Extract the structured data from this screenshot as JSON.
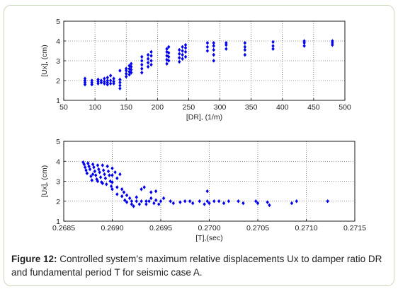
{
  "colors": {
    "marker": "#0000ee",
    "frame": "#c9d9b8",
    "caption_text": "#222222"
  },
  "caption": {
    "label": "Figure 12:",
    "text": " Controlled system’s maximum relative displacements Ux to damper ratio DR and fundamental period T for seismic case A."
  },
  "chart_data": [
    {
      "type": "scatter",
      "title": "",
      "xlabel": "[DR], (1/m)",
      "ylabel": "[Ux], (cm)",
      "xlim": [
        50,
        500
      ],
      "ylim": [
        1,
        5
      ],
      "xticks": [
        "50",
        "100",
        "150",
        "200",
        "250",
        "300",
        "350",
        "400",
        "450",
        "500"
      ],
      "yticks": [
        "1",
        "2",
        "3",
        "4",
        "5"
      ],
      "grid": true,
      "legend": "none",
      "series": [
        {
          "values": [
            [
              84,
              1.8
            ],
            [
              84,
              1.9
            ],
            [
              84,
              2.0
            ],
            [
              84,
              2.1
            ],
            [
              95,
              1.8
            ],
            [
              95,
              1.9
            ],
            [
              95,
              2.0
            ],
            [
              105,
              1.85
            ],
            [
              105,
              1.95
            ],
            [
              105,
              2.05
            ],
            [
              110,
              1.9
            ],
            [
              110,
              2.0
            ],
            [
              115,
              1.85
            ],
            [
              115,
              1.95
            ],
            [
              115,
              2.1
            ],
            [
              120,
              1.8
            ],
            [
              120,
              1.9
            ],
            [
              120,
              2.0
            ],
            [
              120,
              2.15
            ],
            [
              125,
              1.85
            ],
            [
              125,
              2.0
            ],
            [
              125,
              2.25
            ],
            [
              130,
              1.85
            ],
            [
              130,
              1.95
            ],
            [
              130,
              2.1
            ],
            [
              140,
              1.6
            ],
            [
              140,
              1.75
            ],
            [
              140,
              1.9
            ],
            [
              140,
              2.05
            ],
            [
              140,
              2.5
            ],
            [
              150,
              2.2
            ],
            [
              150,
              2.35
            ],
            [
              150,
              2.5
            ],
            [
              150,
              2.6
            ],
            [
              155,
              2.3
            ],
            [
              155,
              2.45
            ],
            [
              155,
              2.6
            ],
            [
              155,
              2.75
            ],
            [
              158,
              2.4
            ],
            [
              158,
              2.55
            ],
            [
              158,
              2.7
            ],
            [
              158,
              2.85
            ],
            [
              175,
              2.4
            ],
            [
              175,
              2.6
            ],
            [
              175,
              2.8
            ],
            [
              175,
              3.0
            ],
            [
              175,
              3.2
            ],
            [
              185,
              2.7
            ],
            [
              185,
              2.9
            ],
            [
              185,
              3.1
            ],
            [
              185,
              3.3
            ],
            [
              190,
              2.8
            ],
            [
              190,
              3.0
            ],
            [
              190,
              3.25
            ],
            [
              190,
              3.45
            ],
            [
              215,
              2.85
            ],
            [
              215,
              3.05
            ],
            [
              215,
              3.25
            ],
            [
              215,
              3.45
            ],
            [
              215,
              3.6
            ],
            [
              218,
              3.0
            ],
            [
              218,
              3.2
            ],
            [
              218,
              3.4
            ],
            [
              218,
              3.7
            ],
            [
              235,
              2.95
            ],
            [
              235,
              3.15
            ],
            [
              235,
              3.35
            ],
            [
              235,
              3.55
            ],
            [
              240,
              3.1
            ],
            [
              240,
              3.3
            ],
            [
              240,
              3.5
            ],
            [
              240,
              3.7
            ],
            [
              245,
              3.2
            ],
            [
              245,
              3.45
            ],
            [
              245,
              3.65
            ],
            [
              245,
              3.8
            ],
            [
              280,
              3.5
            ],
            [
              280,
              3.7
            ],
            [
              280,
              3.9
            ],
            [
              290,
              3.0
            ],
            [
              290,
              3.3
            ],
            [
              290,
              3.55
            ],
            [
              290,
              3.75
            ],
            [
              290,
              3.9
            ],
            [
              310,
              3.6
            ],
            [
              310,
              3.8
            ],
            [
              310,
              3.9
            ],
            [
              340,
              3.3
            ],
            [
              340,
              3.55
            ],
            [
              340,
              3.7
            ],
            [
              340,
              3.9
            ],
            [
              385,
              3.6
            ],
            [
              385,
              3.75
            ],
            [
              385,
              3.95
            ],
            [
              435,
              3.75
            ],
            [
              435,
              3.9
            ],
            [
              435,
              4.0
            ],
            [
              480,
              3.8
            ],
            [
              480,
              3.9
            ],
            [
              480,
              4.0
            ]
          ]
        }
      ]
    },
    {
      "type": "scatter",
      "title": "",
      "xlabel": "[T],(sec)",
      "ylabel": "[Ux], (cm)",
      "xlim": [
        0.2685,
        0.2715
      ],
      "ylim": [
        1,
        5
      ],
      "xticks": [
        "0.2685",
        "0.2690",
        "0.2695",
        "0.2700",
        "0.2705",
        "0.2710",
        "0.2715"
      ],
      "yticks": [
        "1",
        "2",
        "3",
        "4",
        "5"
      ],
      "grid": true,
      "legend": "none",
      "series": [
        {
          "values": [
            [
              0.2687,
              3.95
            ],
            [
              0.26871,
              3.85
            ],
            [
              0.26872,
              3.7
            ],
            [
              0.26873,
              3.55
            ],
            [
              0.26874,
              3.4
            ],
            [
              0.26875,
              3.9
            ],
            [
              0.26876,
              3.75
            ],
            [
              0.26877,
              3.6
            ],
            [
              0.26878,
              3.25
            ],
            [
              0.26879,
              3.05
            ],
            [
              0.2688,
              3.85
            ],
            [
              0.26881,
              3.7
            ],
            [
              0.26882,
              3.5
            ],
            [
              0.26883,
              3.3
            ],
            [
              0.26884,
              3.1
            ],
            [
              0.26885,
              3.8
            ],
            [
              0.26886,
              3.6
            ],
            [
              0.26887,
              3.45
            ],
            [
              0.26888,
              3.2
            ],
            [
              0.26889,
              2.95
            ],
            [
              0.2689,
              3.8
            ],
            [
              0.26891,
              3.55
            ],
            [
              0.26892,
              3.35
            ],
            [
              0.26893,
              3.15
            ],
            [
              0.26894,
              2.85
            ],
            [
              0.26895,
              3.75
            ],
            [
              0.26896,
              3.5
            ],
            [
              0.26897,
              3.3
            ],
            [
              0.26898,
              3.0
            ],
            [
              0.26899,
              2.75
            ],
            [
              0.26875,
              3.9
            ],
            [
              0.2688,
              3.35
            ],
            [
              0.26885,
              3.0
            ],
            [
              0.2689,
              2.9
            ],
            [
              0.269,
              3.65
            ],
            [
              0.269,
              3.3
            ],
            [
              0.269,
              2.95
            ],
            [
              0.269,
              2.6
            ],
            [
              0.26903,
              3.45
            ],
            [
              0.26905,
              3.15
            ],
            [
              0.26905,
              2.7
            ],
            [
              0.26905,
              2.35
            ],
            [
              0.26908,
              3.35
            ],
            [
              0.2691,
              2.6
            ],
            [
              0.2691,
              2.25
            ],
            [
              0.26912,
              2.45
            ],
            [
              0.26913,
              2.05
            ],
            [
              0.26915,
              2.3
            ],
            [
              0.26915,
              1.95
            ],
            [
              0.26918,
              2.15
            ],
            [
              0.2692,
              1.85
            ],
            [
              0.2692,
              2.0
            ],
            [
              0.26922,
              1.75
            ],
            [
              0.26925,
              2.0
            ],
            [
              0.26925,
              2.2
            ],
            [
              0.26928,
              1.85
            ],
            [
              0.2693,
              2.0
            ],
            [
              0.2693,
              2.6
            ],
            [
              0.26933,
              2.7
            ],
            [
              0.26935,
              2.0
            ],
            [
              0.26935,
              1.85
            ],
            [
              0.26938,
              2.0
            ],
            [
              0.2694,
              2.15
            ],
            [
              0.2694,
              2.45
            ],
            [
              0.26943,
              1.9
            ],
            [
              0.26945,
              2.05
            ],
            [
              0.26945,
              2.5
            ],
            [
              0.26948,
              1.85
            ],
            [
              0.2695,
              2.0
            ],
            [
              0.26953,
              2.15
            ],
            [
              0.2696,
              2.0
            ],
            [
              0.26963,
              1.9
            ],
            [
              0.2697,
              1.95
            ],
            [
              0.26975,
              2.0
            ],
            [
              0.2698,
              2.0
            ],
            [
              0.26983,
              1.9
            ],
            [
              0.2699,
              2.0
            ],
            [
              0.26995,
              1.85
            ],
            [
              0.26998,
              2.0
            ],
            [
              0.26998,
              2.5
            ],
            [
              0.27,
              1.9
            ],
            [
              0.27005,
              2.0
            ],
            [
              0.2701,
              2.0
            ],
            [
              0.27015,
              1.9
            ],
            [
              0.2702,
              2.0
            ],
            [
              0.2703,
              2.0
            ],
            [
              0.27035,
              1.9
            ],
            [
              0.27048,
              2.0
            ],
            [
              0.2705,
              1.9
            ],
            [
              0.2706,
              1.95
            ],
            [
              0.27062,
              1.8
            ],
            [
              0.27085,
              1.9
            ],
            [
              0.2709,
              2.0
            ],
            [
              0.27122,
              2.0
            ]
          ]
        }
      ]
    }
  ]
}
